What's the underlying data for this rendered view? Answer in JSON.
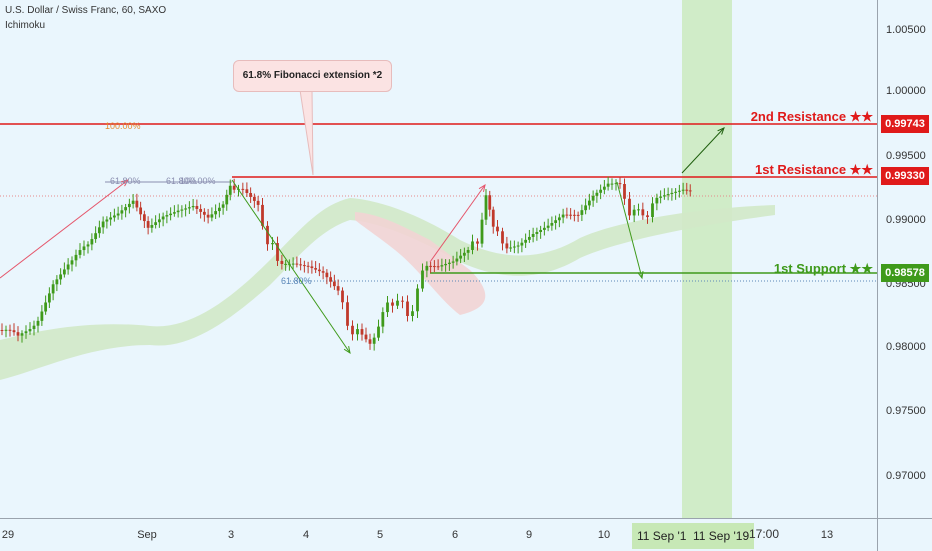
{
  "legend": {
    "symbol_line": "U.S. Dollar / Swiss Franc, 60, SAXO",
    "indicator": "Ichimoku"
  },
  "price_axis": {
    "ticks": [
      "1.00500",
      "1.00000",
      "0.99500",
      "0.99000",
      "0.98500",
      "0.98000",
      "0.97500",
      "0.97000"
    ]
  },
  "levels": {
    "resistance2": {
      "label": "2nd Resistance ★★",
      "price": "0.99743",
      "color": "#e01a1a"
    },
    "resistance1": {
      "label": "1st Resistance ★★",
      "price": "0.99330",
      "color": "#e01a1a"
    },
    "support1": {
      "label": "1st Support ★★",
      "price": "0.98578",
      "color": "#3f9a1b"
    }
  },
  "callout": {
    "text": "61.8% Fibonacci extension *2"
  },
  "fib_labels": {
    "f100": "100.00%",
    "f618a": "61.80%",
    "f618b": "61.80%",
    "f100b": "100.00%",
    "f618c": "61.80%"
  },
  "time_axis": {
    "ticks": [
      "29",
      "Sep",
      "3",
      "4",
      "5",
      "6",
      "9",
      "10",
      "13"
    ],
    "highlight_1": "11 Sep '1",
    "highlight_2": "11 Sep '19",
    "time": "17:00"
  },
  "colors": {
    "background": "#eaf6fd",
    "bull": "#3f9a1b",
    "bear": "#c0392b",
    "cloud": "#d2e9c8",
    "cloud_red": "#f2d4d4",
    "arrow_red": "#e5566b",
    "arrow_green": "#3f9a1b"
  }
}
